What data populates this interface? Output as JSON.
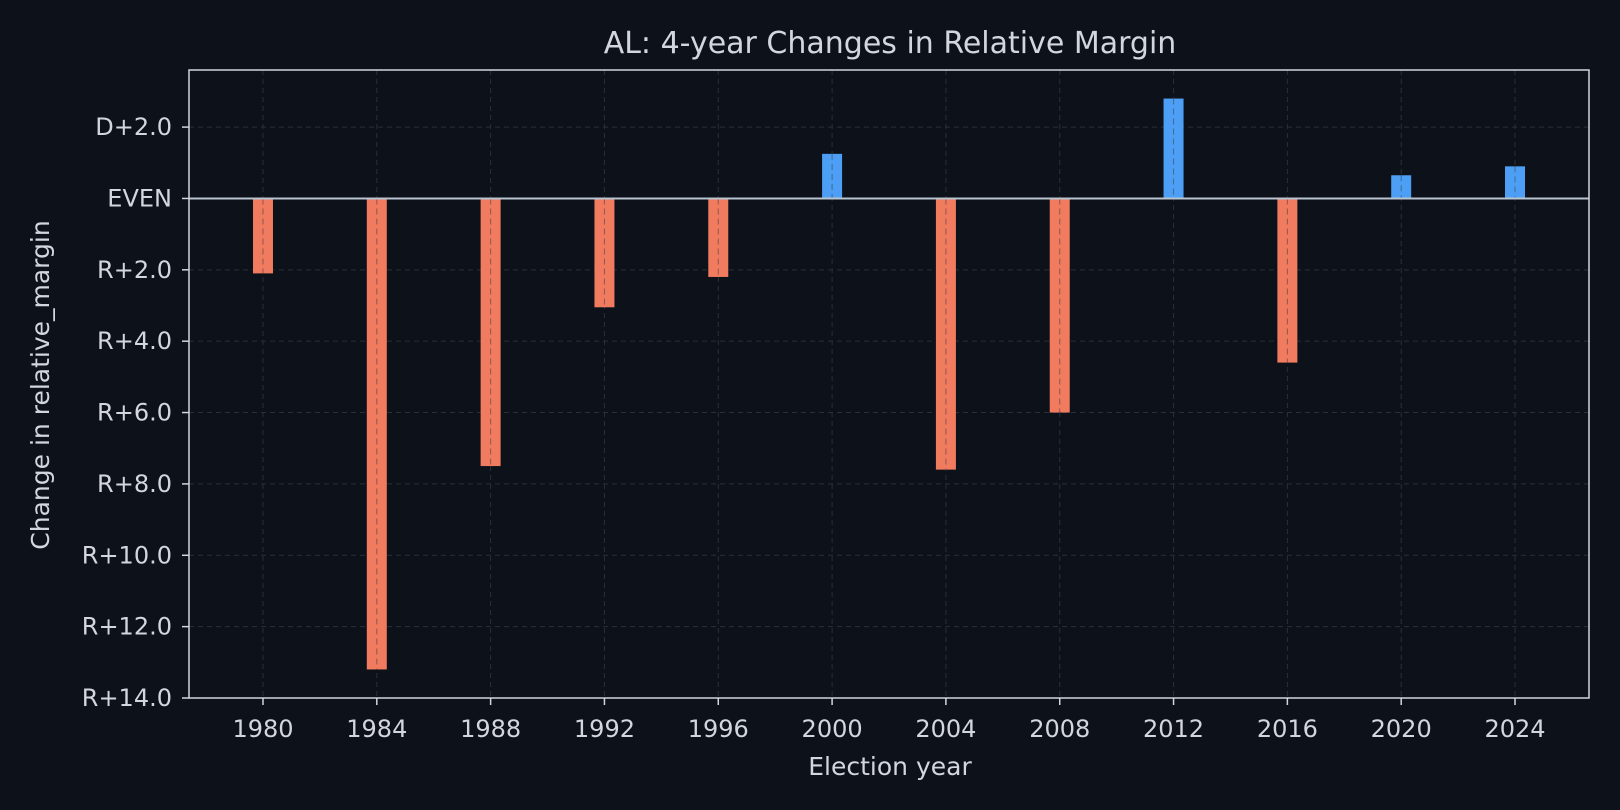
{
  "chart_data": {
    "type": "bar",
    "title": "AL: 4-year Changes in Relative Margin",
    "xlabel": "Election year",
    "ylabel": "Change in relative_margin",
    "categories": [
      1980,
      1984,
      1988,
      1992,
      1996,
      2000,
      2004,
      2008,
      2012,
      2016,
      2020,
      2024
    ],
    "values": [
      -2.1,
      -13.2,
      -7.5,
      -3.05,
      -2.2,
      1.25,
      -7.6,
      -6.0,
      2.8,
      -4.6,
      0.65,
      0.9
    ],
    "ylim": [
      -14.0,
      3.6
    ],
    "yticks": [
      {
        "value": 2.0,
        "label": "D+2.0"
      },
      {
        "value": 0.0,
        "label": "EVEN"
      },
      {
        "value": -2.0,
        "label": "R+2.0"
      },
      {
        "value": -4.0,
        "label": "R+4.0"
      },
      {
        "value": -6.0,
        "label": "R+6.0"
      },
      {
        "value": -8.0,
        "label": "R+8.0"
      },
      {
        "value": -10.0,
        "label": "R+10.0"
      },
      {
        "value": -12.0,
        "label": "R+12.0"
      },
      {
        "value": -14.0,
        "label": "R+14.0"
      }
    ],
    "xticks": [
      "1980",
      "1984",
      "1988",
      "1992",
      "1996",
      "2000",
      "2004",
      "2008",
      "2012",
      "2016",
      "2020",
      "2024"
    ],
    "xlim": [
      1977.4,
      2026.6
    ],
    "grid": true,
    "colors": {
      "positive": "#4d9ff5",
      "negative": "#f07b5e",
      "background": "#0d111a",
      "axis": "#d3d6dc",
      "zero_line": "#b8c4d0",
      "grid": "#2a2f38"
    }
  }
}
